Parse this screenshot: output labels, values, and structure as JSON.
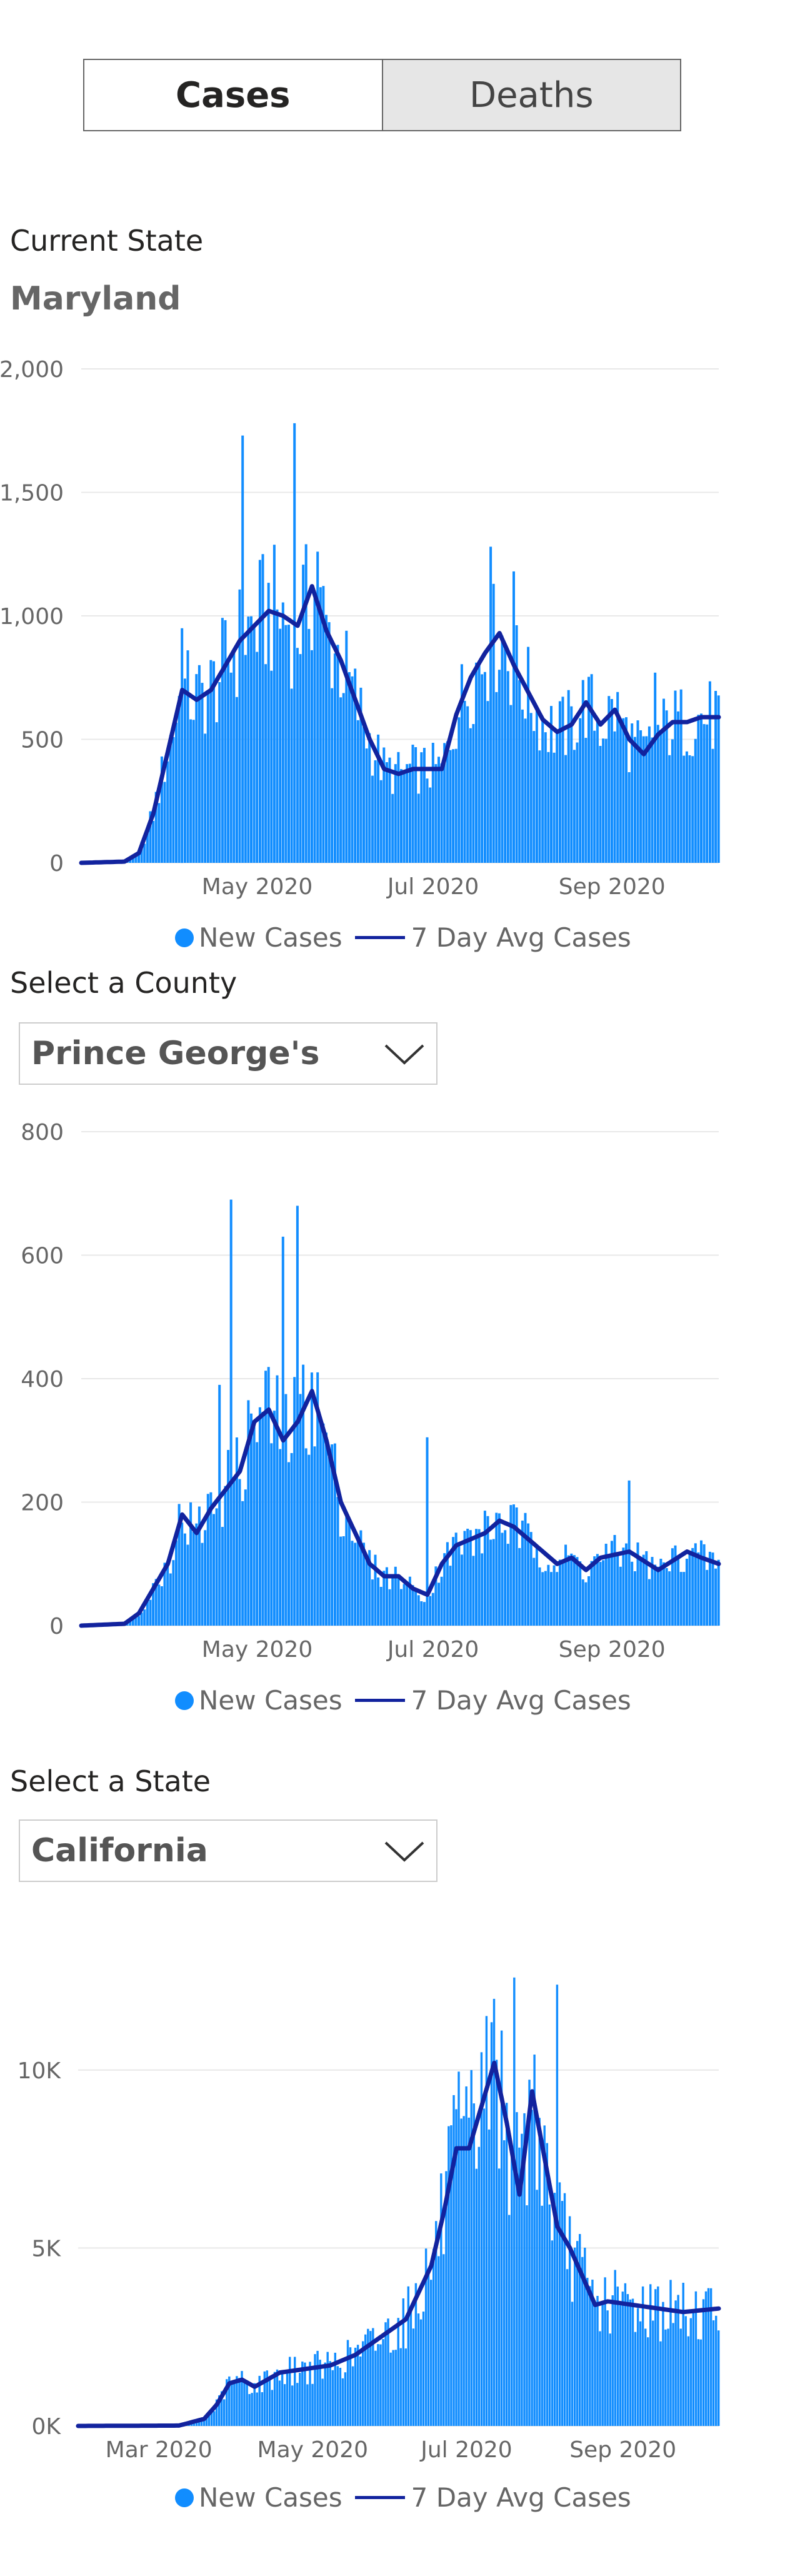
{
  "toggle": {
    "cases_label": "Cases",
    "deaths_label": "Deaths"
  },
  "current_state": {
    "label": "Current State",
    "value": "Maryland"
  },
  "county_select": {
    "label": "Select a County",
    "value": "Prince George's"
  },
  "state_select": {
    "label": "Select a State",
    "value": "California"
  },
  "legend": {
    "new_cases": "New Cases",
    "avg": "7 Day Avg Cases"
  },
  "colors": {
    "bar": "#118dff",
    "avg": "#12239e",
    "grid": "#e8e8e8",
    "axis_text": "#666666"
  },
  "icons": {
    "dropdown": "chevron-down-icon"
  },
  "chart_data": [
    {
      "type": "bar",
      "id": "maryland",
      "series": [
        {
          "name": "New Cases",
          "kind": "bar"
        },
        {
          "name": "7 Day Avg Cases",
          "kind": "line"
        }
      ],
      "x_tick_labels": [
        "May 2020",
        "Jul 2020",
        "Sep 2020"
      ],
      "y_tick_labels": [
        "0",
        "500",
        "1,000",
        "1,500",
        "2,000"
      ],
      "ylim": [
        0,
        2000
      ],
      "yticks": [
        0,
        500,
        1000,
        1500,
        2000
      ],
      "x_ticks_day": [
        61,
        122,
        184
      ],
      "xlim_day": [
        0,
        221
      ],
      "keypoints_day": [
        0,
        15,
        20,
        25,
        30,
        35,
        40,
        45,
        55,
        65,
        70,
        75,
        80,
        85,
        90,
        100,
        105,
        110,
        115,
        125,
        130,
        135,
        140,
        145,
        150,
        160,
        165,
        170,
        175,
        180,
        185,
        190,
        195,
        200,
        205,
        210,
        215,
        221
      ],
      "keypoints_avg": [
        0,
        5,
        40,
        200,
        450,
        700,
        660,
        700,
        900,
        1020,
        1000,
        960,
        1120,
        940,
        820,
        500,
        380,
        360,
        380,
        380,
        600,
        750,
        850,
        930,
        800,
        580,
        530,
        560,
        650,
        560,
        620,
        500,
        440,
        520,
        570,
        570,
        590,
        590
      ],
      "spikes": [
        {
          "day": 56,
          "value": 1730
        },
        {
          "day": 74,
          "value": 1780
        },
        {
          "day": 142,
          "value": 1280
        },
        {
          "day": 35,
          "value": 950
        },
        {
          "day": 78,
          "value": 1290
        },
        {
          "day": 82,
          "value": 1260
        },
        {
          "day": 150,
          "value": 1180
        },
        {
          "day": 199,
          "value": 770
        }
      ]
    },
    {
      "type": "bar",
      "id": "prince-georges",
      "series": [
        {
          "name": "New Cases",
          "kind": "bar"
        },
        {
          "name": "7 Day Avg Cases",
          "kind": "line"
        }
      ],
      "x_tick_labels": [
        "May 2020",
        "Jul 2020",
        "Sep 2020"
      ],
      "y_tick_labels": [
        "0",
        "200",
        "400",
        "600",
        "800"
      ],
      "ylim": [
        0,
        800
      ],
      "yticks": [
        0,
        200,
        400,
        600,
        800
      ],
      "x_ticks_day": [
        61,
        122,
        184
      ],
      "xlim_day": [
        0,
        221
      ],
      "keypoints_day": [
        0,
        15,
        20,
        25,
        30,
        35,
        40,
        45,
        55,
        60,
        65,
        70,
        75,
        80,
        85,
        90,
        100,
        105,
        110,
        115,
        120,
        125,
        130,
        135,
        140,
        145,
        150,
        160,
        165,
        170,
        175,
        180,
        190,
        200,
        210,
        215,
        221
      ],
      "keypoints_avg": [
        0,
        3,
        20,
        60,
        100,
        180,
        150,
        190,
        250,
        330,
        350,
        300,
        330,
        380,
        300,
        200,
        100,
        80,
        80,
        60,
        50,
        100,
        130,
        140,
        150,
        170,
        160,
        120,
        100,
        110,
        90,
        110,
        120,
        90,
        120,
        110,
        100
      ],
      "spikes": [
        {
          "day": 52,
          "value": 690
        },
        {
          "day": 70,
          "value": 630
        },
        {
          "day": 75,
          "value": 680
        },
        {
          "day": 80,
          "value": 410
        },
        {
          "day": 48,
          "value": 390
        },
        {
          "day": 120,
          "value": 305
        },
        {
          "day": 190,
          "value": 235
        }
      ]
    },
    {
      "type": "bar",
      "id": "california",
      "series": [
        {
          "name": "New Cases",
          "kind": "bar"
        },
        {
          "name": "7 Day Avg Cases",
          "kind": "line"
        }
      ],
      "x_tick_labels": [
        "Mar 2020",
        "May 2020",
        "Jul 2020",
        "Sep 2020"
      ],
      "y_tick_labels": [
        "0K",
        "5K",
        "10K"
      ],
      "ylim": [
        0,
        13000
      ],
      "yticks": [
        0,
        5000,
        10000
      ],
      "x_ticks_day": [
        32,
        93,
        154,
        216
      ],
      "xlim_day": [
        0,
        254
      ],
      "keypoints_day": [
        0,
        40,
        50,
        55,
        60,
        65,
        70,
        80,
        90,
        100,
        110,
        120,
        130,
        140,
        145,
        150,
        155,
        160,
        165,
        170,
        175,
        180,
        185,
        190,
        195,
        200,
        205,
        210,
        220,
        230,
        240,
        254
      ],
      "keypoints_avg": [
        0,
        10,
        200,
        600,
        1200,
        1300,
        1100,
        1500,
        1600,
        1700,
        2000,
        2500,
        3000,
        4500,
        6000,
        7800,
        7800,
        9000,
        10200,
        8500,
        6500,
        9400,
        7500,
        5600,
        5000,
        4200,
        3400,
        3500,
        3400,
        3300,
        3200,
        3300
      ],
      "spikes": [
        {
          "day": 173,
          "value": 12600
        },
        {
          "day": 190,
          "value": 12400
        },
        {
          "day": 165,
          "value": 12000
        },
        {
          "day": 160,
          "value": 10500
        },
        {
          "day": 150,
          "value": 8900
        }
      ]
    }
  ]
}
